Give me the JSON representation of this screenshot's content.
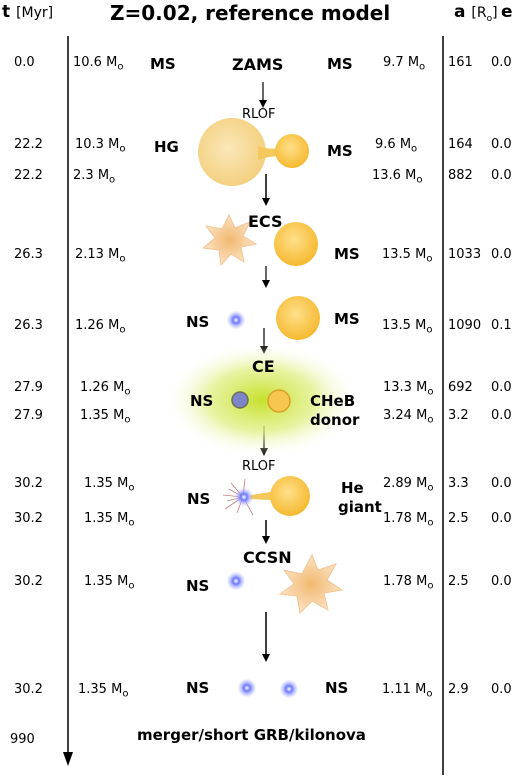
{
  "header": {
    "time_col_bold": "t",
    "time_col_unit": "[Myr]",
    "title": "Z=0.02, reference model",
    "sep_col_bold": "a",
    "sep_col_unit": "[R",
    "sep_col_sub": "o",
    "sep_col_close": "]",
    "ecc_col": "e"
  },
  "mass_unit": "M",
  "mass_sub": "o",
  "rows": [
    {
      "t": "0.0",
      "m1": "10.6",
      "m2": "9.7",
      "a": "161",
      "e": "0.0"
    },
    {
      "t": "22.2",
      "m1": "10.3",
      "m2": "9.6",
      "a": "164",
      "e": "0.0"
    },
    {
      "t": "22.2",
      "m1": "2.3",
      "m2": "13.6",
      "a": "882",
      "e": "0.0"
    },
    {
      "t": "26.3",
      "m1": "2.13",
      "m2": "13.5",
      "a": "1033",
      "e": "0.0"
    },
    {
      "t": "26.3",
      "m1": "1.26",
      "m2": "13.5",
      "a": "1090",
      "e": "0.1"
    },
    {
      "t": "27.9",
      "m1": "1.26",
      "m2": "13.3",
      "a": "692",
      "e": "0.0"
    },
    {
      "t": "27.9",
      "m1": "1.35",
      "m2": "3.24",
      "a": "3.2",
      "e": "0.0"
    },
    {
      "t": "30.2",
      "m1": "1.35",
      "m2": "2.89",
      "a": "3.3",
      "e": "0.0"
    },
    {
      "t": "30.2",
      "m1": "1.35",
      "m2": "1.78",
      "a": "2.5",
      "e": "0.0"
    },
    {
      "t": "30.2",
      "m1": "1.35",
      "m2": "1.78",
      "a": "2.5",
      "e": "0.0"
    },
    {
      "t": "30.2",
      "m1": "1.35",
      "m2": "1.11",
      "a": "2.9",
      "e": "0.0"
    }
  ],
  "final_time": "990",
  "stages": {
    "zams": "ZAMS",
    "rlof1": "RLOF",
    "ecs": "ECS",
    "ce": "CE",
    "rlof2": "RLOF",
    "ccsn": "CCSN"
  },
  "labels": {
    "ms": "MS",
    "hg": "HG",
    "ns": "NS",
    "cheb": "CHeB",
    "donor": "donor",
    "he": "He",
    "giant": "giant"
  },
  "final_event": "merger/short GRB/kilonova",
  "colors": {
    "star": "#f7c94a",
    "giant": "#f6dc98",
    "ns": "#4b5cf0",
    "ce_glow": "#d4ea55",
    "ecs_burst": "#f6c88f"
  }
}
